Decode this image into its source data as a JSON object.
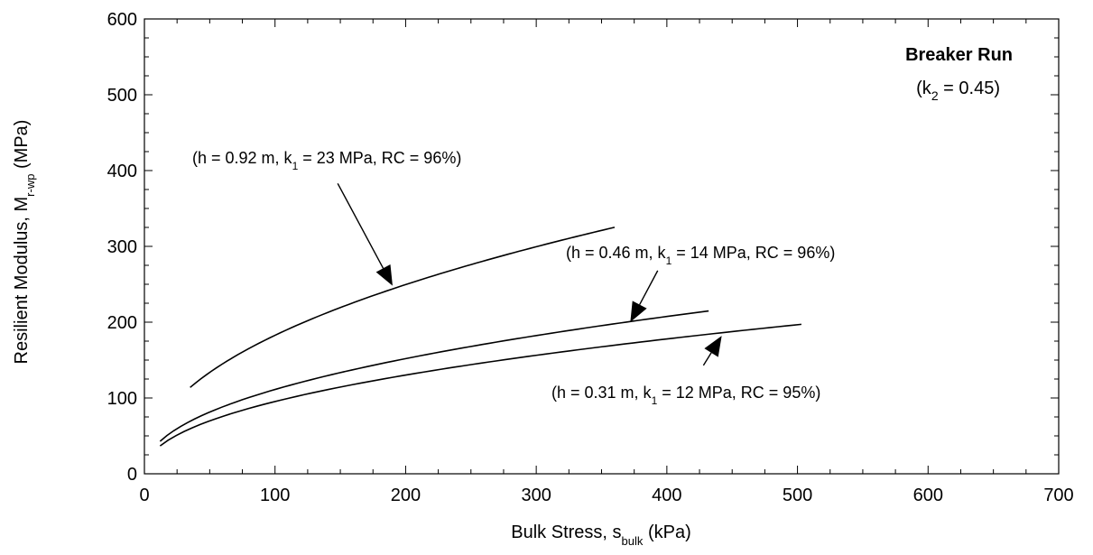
{
  "chart_data": {
    "type": "line",
    "title": "Breaker Run",
    "parameter": {
      "prefix": "(k",
      "sub": "2",
      "suffix": " = 0.45)"
    },
    "xlabel": {
      "prefix": "Bulk Stress, s",
      "sub": "bulk",
      "suffix": " (kPa)"
    },
    "ylabel": {
      "prefix": "Resilient Modulus, M",
      "sub": "r-wp",
      "suffix": " (MPa)"
    },
    "xlim": [
      0,
      700
    ],
    "ylim": [
      0,
      600
    ],
    "xticks": [
      0,
      100,
      200,
      300,
      400,
      500,
      600,
      700
    ],
    "yticks": [
      0,
      100,
      200,
      300,
      400,
      500,
      600
    ],
    "k2": 0.45,
    "series": [
      {
        "k1": 23,
        "xrange": [
          35,
          360
        ]
      },
      {
        "k1": 14,
        "xrange": [
          12,
          432
        ]
      },
      {
        "k1": 12,
        "xrange": [
          12,
          503
        ]
      }
    ],
    "annotations": [
      {
        "prefix": "(h = 0.92 m, k",
        "sub": "1",
        "suffix": " = 23 MPa, RC = 96%)",
        "arrow_to": [
          190,
          248
        ],
        "arrow_from": [
          148,
          383
        ]
      },
      {
        "prefix": "(h = 0.46 m, k",
        "sub": "1",
        "suffix": " = 14 MPa, RC = 96%)",
        "arrow_to": [
          372,
          200
        ],
        "arrow_from": [
          393,
          268
        ]
      },
      {
        "prefix": "(h = 0.31 m, k",
        "sub": "1",
        "suffix": " = 12 MPa, RC = 95%)",
        "arrow_to": [
          442,
          182
        ],
        "arrow_from": [
          428,
          143
        ]
      }
    ]
  }
}
